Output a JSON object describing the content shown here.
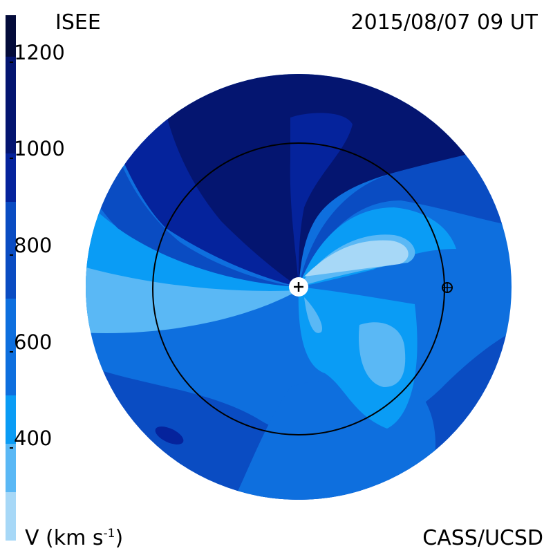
{
  "header": {
    "source": "ISEE",
    "timestamp": "2015/08/07 09 UT"
  },
  "footer": {
    "unit_label_main": "V (km s",
    "unit_label_exp": "-1",
    "unit_label_end": ")",
    "credit": "CASS/UCSD"
  },
  "colorbar": {
    "ticks": [
      "1200",
      "1000",
      "800",
      "600",
      "400"
    ],
    "colors": [
      "#a7d8f7",
      "#5ab8f5",
      "#0a9cf5",
      "#0e6fde",
      "#0a4cc2",
      "#05239c",
      "#041570",
      "#030b3a"
    ]
  },
  "map": {
    "colors": {
      "lightest": "#a7d8f7",
      "light": "#5ab8f5",
      "mid": "#0a9cf5",
      "midDark": "#0e6fde",
      "dark": "#0a4cc2",
      "darker": "#05239c",
      "darkest": "#041570"
    },
    "sun_symbol": "plus-icon",
    "earth_symbol": "earth-icon"
  }
}
